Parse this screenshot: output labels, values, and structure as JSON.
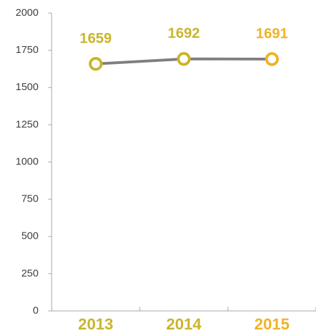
{
  "chart_data": {
    "type": "line",
    "categories": [
      "2013",
      "2014",
      "2015"
    ],
    "series": [
      {
        "values": [
          1659,
          1692,
          1691
        ],
        "color": "#7f7f7f"
      }
    ],
    "point_colors": [
      "#c9b52b",
      "#c9b52b",
      "#f0b323"
    ],
    "ylim": [
      0,
      2000
    ],
    "yticks": [
      0,
      250,
      500,
      750,
      1000,
      1250,
      1500,
      1750,
      2000
    ],
    "grid": false
  }
}
